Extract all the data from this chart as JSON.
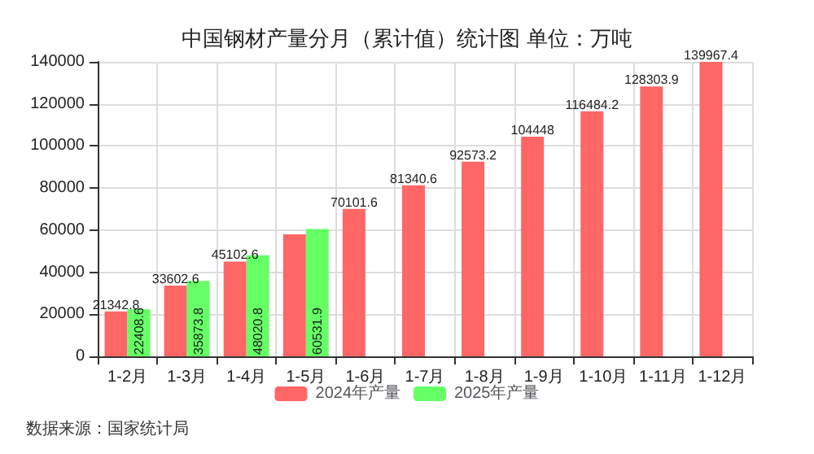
{
  "chart_data": {
    "type": "bar",
    "title": "中国钢材产量分月（累计值）统计图 单位：万吨",
    "categories": [
      "1-2月",
      "1-3月",
      "1-4月",
      "1-5月",
      "1-6月",
      "1-7月",
      "1-8月",
      "1-9月",
      "1-10月",
      "1-11月",
      "1-12月"
    ],
    "series": [
      {
        "name": "2024年产量",
        "color": "#ff6666",
        "values": [
          21342.8,
          33602.6,
          45102.6,
          58000,
          70101.6,
          81340.6,
          92573.2,
          104448,
          116484.2,
          128303.9,
          139967.4
        ],
        "value_labels": [
          "21342.8",
          "33602.6",
          "45102.6",
          null,
          "70101.6",
          "81340.6",
          "92573.2",
          "104448",
          "116484.2",
          "128303.9",
          "139967.4"
        ]
      },
      {
        "name": "2025年产量",
        "color": "#66ff66",
        "values": [
          22408.6,
          35873.8,
          48020.8,
          60531.9,
          null,
          null,
          null,
          null,
          null,
          null,
          null
        ],
        "value_labels": [
          "22408.6",
          "35873.8",
          "48020.8",
          "60531.9",
          null,
          null,
          null,
          null,
          null,
          null,
          null
        ]
      }
    ],
    "ylim": [
      0,
      140000
    ],
    "yticks": [
      0,
      20000,
      40000,
      60000,
      80000,
      100000,
      120000,
      140000
    ],
    "grid": true,
    "legend": "bottom",
    "annotations": [
      "数据来源：国家统计局"
    ]
  }
}
